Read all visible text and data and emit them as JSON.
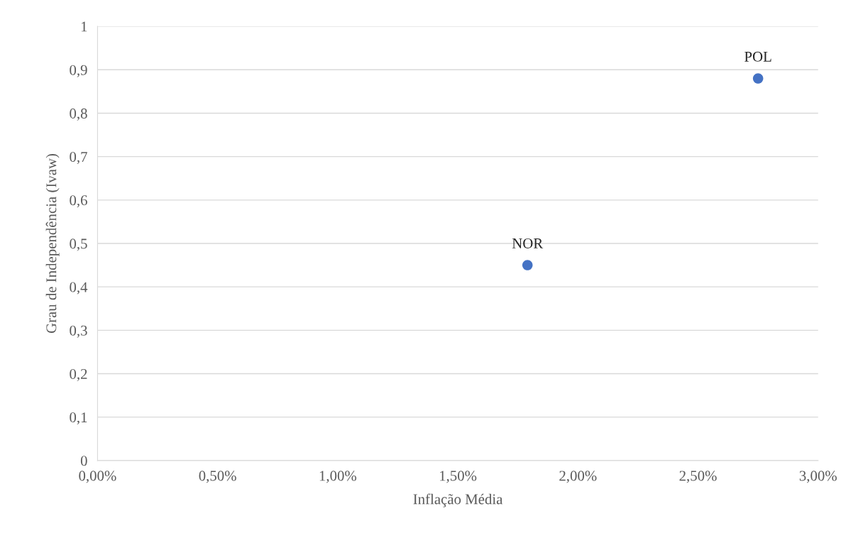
{
  "chart_data": {
    "type": "scatter",
    "xlabel": "Inflação Média",
    "ylabel": "Grau de Independência (Ivaw)",
    "x": [
      1.79,
      2.75
    ],
    "series": [
      {
        "color": "#4472c4",
        "values": [
          0.45,
          0.88
        ]
      }
    ],
    "annotations": [
      {
        "text": "NOR",
        "x": 1.79,
        "y": 0.45
      },
      {
        "text": "POL",
        "x": 2.75,
        "y": 0.88
      }
    ],
    "xlim": [
      0,
      3
    ],
    "xticks": [
      {
        "value": 0,
        "label": "0,00%"
      },
      {
        "value": 0.5,
        "label": "0,50%"
      },
      {
        "value": 1,
        "label": "1,00%"
      },
      {
        "value": 1.5,
        "label": "1,50%"
      },
      {
        "value": 2,
        "label": "2,00%"
      },
      {
        "value": 2.5,
        "label": "2,50%"
      },
      {
        "value": 3,
        "label": "3,00%"
      }
    ],
    "ylim": [
      0,
      1
    ],
    "yticks": [
      0,
      {
        "value": 0.1,
        "label": "0,1"
      },
      {
        "value": 0.2,
        "label": "0,2"
      },
      {
        "value": 0.3,
        "label": "0,3"
      },
      {
        "value": 0.4,
        "label": "0,4"
      },
      {
        "value": 0.5,
        "label": "0,5"
      },
      {
        "value": 0.6,
        "label": "0,6"
      },
      {
        "value": 0.7,
        "label": "0,7"
      },
      {
        "value": 0.8,
        "label": "0,8"
      },
      {
        "value": 0.9,
        "label": "0,9"
      },
      1
    ],
    "grid": "y",
    "marker": "circle",
    "legend": false
  }
}
